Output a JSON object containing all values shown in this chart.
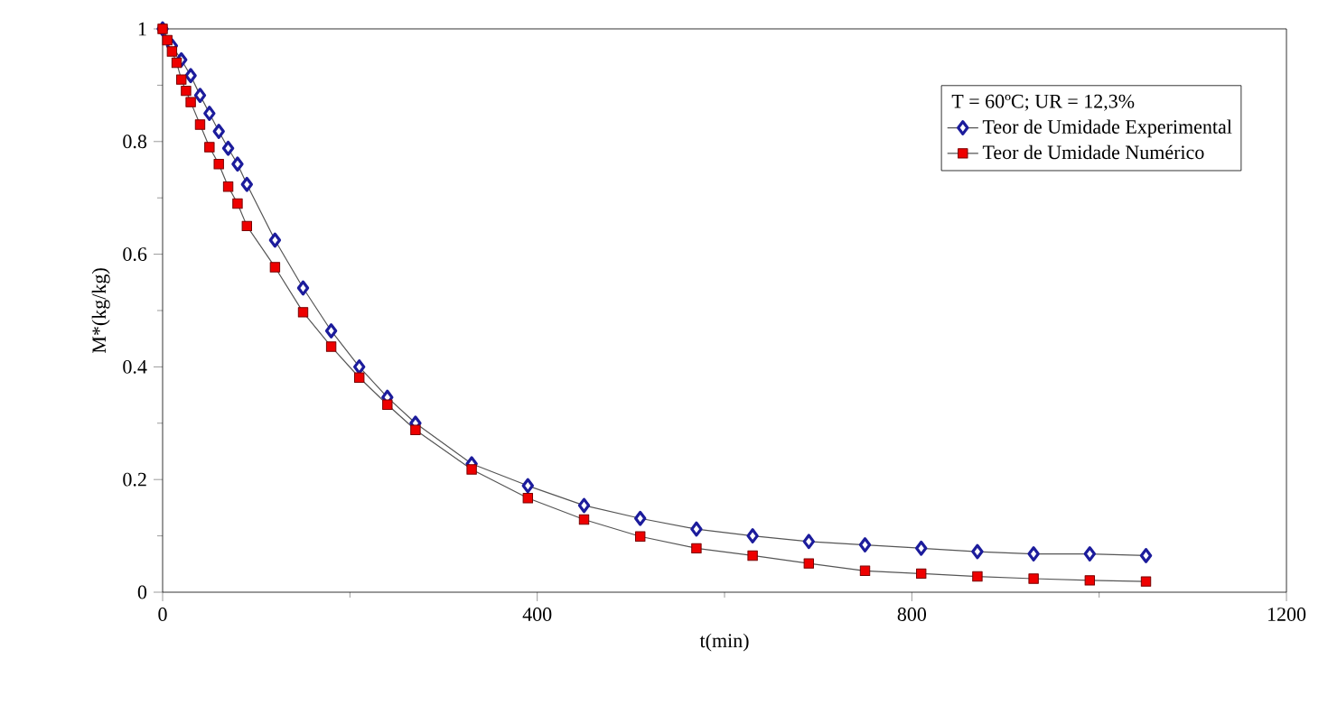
{
  "chart_data": {
    "type": "line",
    "xlabel": "t(min)",
    "ylabel": "M*(kg/kg)",
    "legend_title": "T = 60ºC; UR = 12,3%",
    "xlim": [
      0,
      1200
    ],
    "xticks": [
      0,
      400,
      800,
      1200
    ],
    "ylim": [
      0,
      1
    ],
    "yticks": [
      0,
      0.2,
      0.4,
      0.6,
      0.8,
      1
    ],
    "legend": "top right",
    "grid": false,
    "line_style": "solid",
    "series": [
      {
        "name": "Teor de Umidade Experimental",
        "color": "#1c1c9c",
        "marker": "diamond",
        "x": [
          0,
          10,
          20,
          30,
          40,
          50,
          60,
          70,
          80,
          90,
          120,
          150,
          180,
          210,
          240,
          270,
          330,
          390,
          450,
          510,
          570,
          630,
          690,
          750,
          810,
          870,
          930,
          990,
          1050
        ],
        "values": [
          1,
          0.97,
          0.945,
          0.917,
          0.882,
          0.85,
          0.818,
          0.788,
          0.76,
          0.724,
          0.625,
          0.54,
          0.464,
          0.4,
          0.346,
          0.3,
          0.228,
          0.189,
          0.154,
          0.131,
          0.112,
          0.1,
          0.09,
          0.084,
          0.078,
          0.072,
          0.068,
          0.068,
          0.065
        ]
      },
      {
        "name": "Teor de Umidade Numérico",
        "color": "#ee0000",
        "marker": "square",
        "x": [
          0,
          5,
          10,
          15,
          20,
          25,
          30,
          40,
          50,
          60,
          70,
          80,
          90,
          120,
          150,
          180,
          210,
          240,
          270,
          330,
          390,
          450,
          510,
          570,
          630,
          690,
          750,
          810,
          870,
          930,
          990,
          1050
        ],
        "values": [
          1,
          0.98,
          0.96,
          0.94,
          0.91,
          0.89,
          0.87,
          0.83,
          0.79,
          0.76,
          0.72,
          0.69,
          0.65,
          0.577,
          0.497,
          0.436,
          0.381,
          0.333,
          0.288,
          0.218,
          0.167,
          0.129,
          0.099,
          0.078,
          0.065,
          0.051,
          0.038,
          0.033,
          0.028,
          0.024,
          0.021,
          0.019
        ]
      }
    ]
  }
}
